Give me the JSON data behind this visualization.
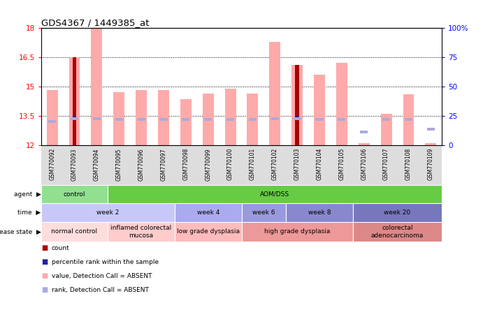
{
  "title": "GDS4367 / 1449385_at",
  "samples": [
    "GSM770092",
    "GSM770093",
    "GSM770094",
    "GSM770095",
    "GSM770096",
    "GSM770097",
    "GSM770098",
    "GSM770099",
    "GSM770100",
    "GSM770101",
    "GSM770102",
    "GSM770103",
    "GSM770104",
    "GSM770105",
    "GSM770106",
    "GSM770107",
    "GSM770108",
    "GSM770109"
  ],
  "pink_bar_heights": [
    14.8,
    16.5,
    18.8,
    14.7,
    14.8,
    14.8,
    14.35,
    14.65,
    14.9,
    14.65,
    17.3,
    16.1,
    15.6,
    16.2,
    12.1,
    13.6,
    14.6,
    12.1
  ],
  "red_bar_heights": [
    null,
    16.5,
    null,
    null,
    null,
    null,
    null,
    null,
    null,
    null,
    null,
    16.1,
    null,
    null,
    null,
    null,
    null,
    null
  ],
  "blue_bar_heights": [
    null,
    13.4,
    null,
    null,
    null,
    null,
    null,
    null,
    null,
    null,
    null,
    13.4,
    null,
    null,
    null,
    null,
    null,
    null
  ],
  "rank_bar_heights": [
    13.2,
    13.35,
    13.35,
    13.3,
    13.3,
    13.3,
    13.3,
    13.3,
    13.3,
    13.3,
    13.35,
    13.35,
    13.3,
    13.3,
    12.65,
    13.3,
    13.3,
    12.8
  ],
  "ylim": [
    12,
    18
  ],
  "yticks": [
    12,
    13.5,
    15,
    16.5,
    18
  ],
  "right_yticks": [
    0,
    25,
    50,
    75,
    100
  ],
  "right_ylim": [
    0,
    100
  ],
  "agent_groups": [
    {
      "label": "control",
      "start": 0,
      "end": 3,
      "color": "#90e090"
    },
    {
      "label": "AOM/DSS",
      "start": 3,
      "end": 18,
      "color": "#66cc44"
    }
  ],
  "time_groups": [
    {
      "label": "week 2",
      "start": 0,
      "end": 6,
      "color": "#c8c8f8"
    },
    {
      "label": "week 4",
      "start": 6,
      "end": 9,
      "color": "#aaaaee"
    },
    {
      "label": "week 6",
      "start": 9,
      "end": 11,
      "color": "#9999dd"
    },
    {
      "label": "week 8",
      "start": 11,
      "end": 14,
      "color": "#8888cc"
    },
    {
      "label": "week 20",
      "start": 14,
      "end": 18,
      "color": "#7777bb"
    }
  ],
  "disease_groups": [
    {
      "label": "normal control",
      "start": 0,
      "end": 3,
      "color": "#ffdddd"
    },
    {
      "label": "inflamed colorectal\nmucosa",
      "start": 3,
      "end": 6,
      "color": "#ffcccc"
    },
    {
      "label": "low grade dysplasia",
      "start": 6,
      "end": 9,
      "color": "#ffbbbb"
    },
    {
      "label": "high grade dysplasia",
      "start": 9,
      "end": 14,
      "color": "#ee9999"
    },
    {
      "label": "colorectal\nadenocarcinoma",
      "start": 14,
      "end": 18,
      "color": "#dd8888"
    }
  ],
  "pink_color": "#ffaaaa",
  "red_color": "#aa0000",
  "blue_color": "#2222aa",
  "rank_color": "#aaaadd",
  "bg_color": "#ffffff",
  "xtick_bg": "#dddddd"
}
